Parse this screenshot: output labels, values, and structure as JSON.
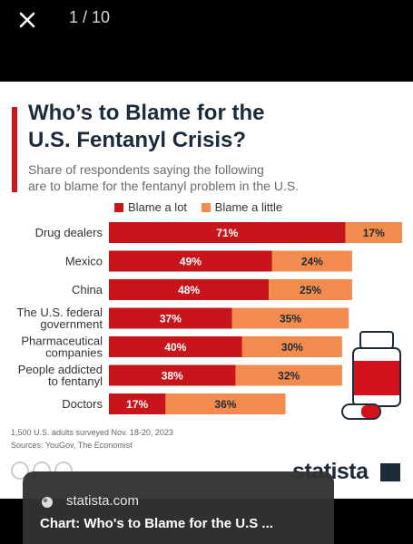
{
  "viewer": {
    "counter": "1 / 10"
  },
  "chart": {
    "title_line1": "Who’s to Blame for the",
    "title_line2": "U.S. Fentanyl Crisis?",
    "subtitle_line1": "Share of respondents saying the following",
    "subtitle_line2": "are to blame for the fentanyl problem in the U.S.",
    "footnote_line1": "1,500 U.S. adults surveyed Nov. 18-20, 2023",
    "footnote_line2": "Sources: YouGov, The Economist",
    "logo": "statista",
    "colors": {
      "blame_a_lot": "#c8151b",
      "blame_a_little": "#f28b4e"
    }
  },
  "chart_data": {
    "type": "bar",
    "orientation": "horizontal",
    "stacked": true,
    "categories": [
      [
        "Drug dealers"
      ],
      [
        "Mexico"
      ],
      [
        "China"
      ],
      [
        "The U.S. federal",
        "government"
      ],
      [
        "Pharmaceutical",
        "companies"
      ],
      [
        "People addicted",
        "to fentanyl"
      ],
      [
        "Doctors"
      ]
    ],
    "series": [
      {
        "name": "Blame a lot",
        "values": [
          71,
          49,
          48,
          37,
          40,
          38,
          17
        ]
      },
      {
        "name": "Blame a little",
        "values": [
          17,
          24,
          25,
          35,
          30,
          32,
          36
        ]
      }
    ],
    "value_format": "%",
    "grid": false,
    "legend": "top"
  },
  "caption": {
    "site": "statista.com",
    "title": "Chart: Who's to Blame for the U.S ..."
  }
}
